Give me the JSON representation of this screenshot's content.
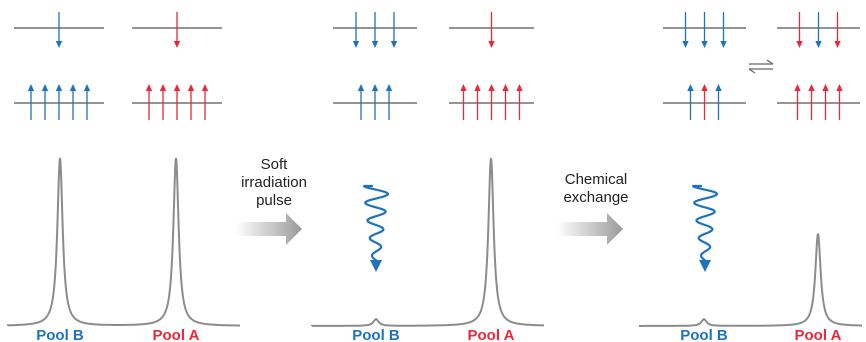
{
  "colors": {
    "pool_b": "#1e73be",
    "pool_a": "#e8293a",
    "level_line": "#555555",
    "spectrum_line": "#8c8c8c",
    "transition_arrow": "#9a9a9a"
  },
  "transitions": [
    {
      "lines": [
        "Soft",
        "irradiation",
        "pulse"
      ]
    },
    {
      "lines": [
        "Chemical",
        "exchange"
      ]
    }
  ],
  "panels": [
    {
      "pool_b": {
        "label": "Pool B",
        "upper_spins": [
          "B"
        ],
        "lower_spins": [
          "B",
          "B",
          "B",
          "B",
          "B"
        ],
        "peak_level": 1.0
      },
      "pool_a": {
        "label": "Pool A",
        "upper_spins": [
          "A"
        ],
        "lower_spins": [
          "A",
          "A",
          "A",
          "A",
          "A"
        ],
        "peak_level": 1.0
      },
      "irradiated": false,
      "exchange_symbol": false
    },
    {
      "pool_b": {
        "label": "Pool B",
        "upper_spins": [
          "B",
          "B",
          "B"
        ],
        "lower_spins": [
          "B",
          "B",
          "B"
        ],
        "peak_level": 0.04
      },
      "pool_a": {
        "label": "Pool A",
        "upper_spins": [
          "A"
        ],
        "lower_spins": [
          "A",
          "A",
          "A",
          "A",
          "A"
        ],
        "peak_level": 1.0
      },
      "irradiated": true,
      "exchange_symbol": false
    },
    {
      "pool_b": {
        "label": "Pool B",
        "upper_spins": [
          "B",
          "B",
          "B"
        ],
        "lower_spins": [
          "B",
          "A",
          "B"
        ],
        "peak_level": 0.04
      },
      "pool_a": {
        "label": "Pool A",
        "upper_spins": [
          "A",
          "B",
          "A"
        ],
        "lower_spins": [
          "A",
          "A",
          "A",
          "A"
        ],
        "peak_level": 0.55
      },
      "irradiated": true,
      "exchange_symbol": true
    }
  ]
}
